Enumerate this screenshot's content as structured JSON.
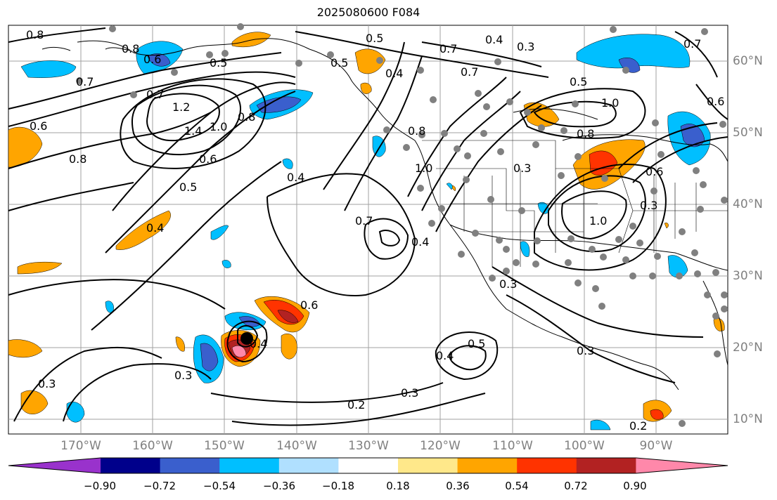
{
  "title": "2025080600 F084",
  "lon_labels": [
    "170°W",
    "160°W",
    "150°W",
    "140°W",
    "130°W",
    "120°W",
    "110°W",
    "100°W",
    "90°W"
  ],
  "lat_labels": [
    "60°N",
    "50°N",
    "40°N",
    "30°N",
    "20°N",
    "10°N"
  ],
  "contour_labels": [
    "0.8",
    "0.6",
    "0.7",
    "0.5",
    "0.4",
    "0.3",
    "0.2",
    "1.0",
    "1.2",
    "1.4"
  ],
  "colorbar": {
    "ticks": [
      "−0.90",
      "−0.72",
      "−0.54",
      "−0.36",
      "−0.18",
      "0.18",
      "0.36",
      "0.54",
      "0.72",
      "0.90"
    ],
    "colors": [
      "#9932cc",
      "#00008b",
      "#3a5fcd",
      "#00bfff",
      "#b0e0ff",
      "#ffffff",
      "#ffe88a",
      "#ffa500",
      "#ff3300",
      "#b22222",
      "#ff88aa"
    ]
  },
  "map_colors": {
    "positive_light": "#ffa500",
    "positive_mid": "#ff3300",
    "positive_dark": "#b22222",
    "positive_extreme": "#ff88aa",
    "negative_light": "#00bfff",
    "negative_mid": "#3a5fcd",
    "negative_dark": "#00008b",
    "station_dot": "#808080"
  }
}
